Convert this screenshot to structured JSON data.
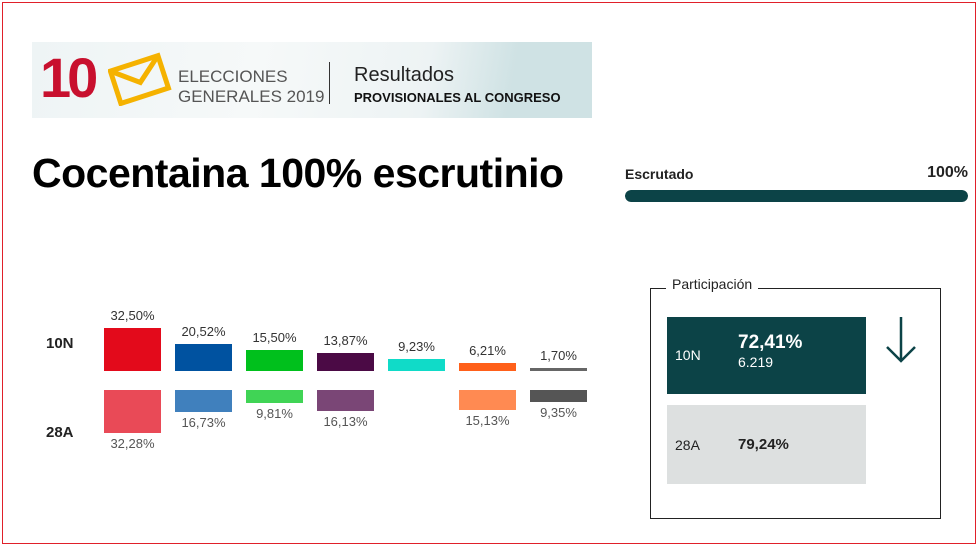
{
  "banner": {
    "number": "10",
    "line1": "ELECCIONES",
    "line2": "GENERALES 2019",
    "results_title": "Resultados",
    "results_sub": "PROVISIONALES AL CONGRESO"
  },
  "title": "Cocentaina 100% escrutinio",
  "scrutiny": {
    "label": "Escrutado",
    "value": "100%",
    "fraction": 1.0
  },
  "participation": {
    "label": "Participación",
    "current": {
      "label": "10N",
      "pct": "72,41%",
      "votes": "6.219"
    },
    "previous": {
      "label": "28A",
      "pct": "79,24%"
    },
    "trend_icon": "arrow-down-icon"
  },
  "chart_data": {
    "type": "bar",
    "rows": [
      "10N",
      "28A"
    ],
    "series": [
      {
        "name": "10N",
        "values": [
          32.5,
          20.52,
          15.5,
          13.87,
          9.23,
          6.21,
          1.7
        ],
        "labels": [
          "32,50%",
          "20,52%",
          "15,50%",
          "13,87%",
          "9,23%",
          "6,21%",
          "1,70%"
        ],
        "colors": [
          "#e30a1b",
          "#0052a0",
          "#00c01c",
          "#4b0a45",
          "#10dbc8",
          "#ff601a",
          "#666666"
        ]
      },
      {
        "name": "28A",
        "values": [
          32.28,
          16.73,
          9.81,
          16.13,
          null,
          15.13,
          9.35
        ],
        "labels": [
          "32,28%",
          "16,73%",
          "9,81%",
          "16,13%",
          "",
          "15,13%",
          "9,35%"
        ],
        "colors": [
          "#e94a57",
          "#4080bd",
          "#40d455",
          "#7a4676",
          "#4de4d6",
          "#ff8a52",
          "#555555"
        ]
      }
    ]
  }
}
